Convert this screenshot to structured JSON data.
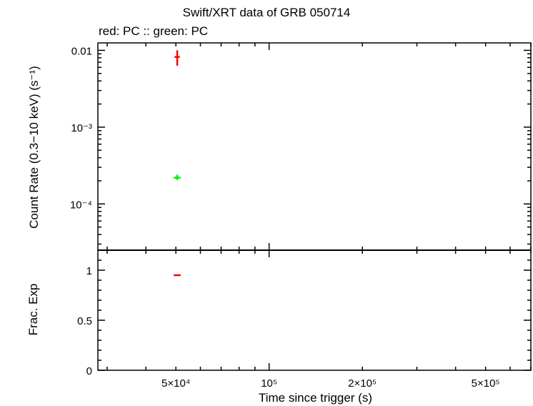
{
  "title": "Swift/XRT data of GRB 050714",
  "subtitle": "red: PC  :: green: PC",
  "colors": {
    "red": "#ff0000",
    "green": "#00ee00",
    "axes": "#000000"
  },
  "chart_data": [
    {
      "type": "scatter",
      "panel": "top",
      "ylabel": "Count Rate (0.3−10 keV) (s⁻¹)",
      "xscale": "log",
      "yscale": "log",
      "xlim": [
        28000,
        700000
      ],
      "ylim": [
        2.5e-05,
        0.0125
      ],
      "yticks": [
        {
          "value": 0.01,
          "label": "0.01"
        },
        {
          "value": 0.001,
          "label": "10⁻³"
        },
        {
          "value": 0.0001,
          "label": "10⁻⁴"
        }
      ],
      "series": [
        {
          "color": "#ff0000",
          "points": [
            {
              "x": 50500,
              "y": 0.0082,
              "xerr": [
                49500,
                51500
              ],
              "yerr": [
                0.0063,
                0.01
              ]
            }
          ]
        },
        {
          "color": "#00ee00",
          "points": [
            {
              "x": 50500,
              "y": 0.00022,
              "xerr": [
                49200,
                51800
              ],
              "yerr": [
                0.000205,
                0.00024
              ]
            }
          ]
        }
      ]
    },
    {
      "type": "scatter",
      "panel": "bottom",
      "xlabel": "Time since trigger (s)",
      "ylabel": "Frac. Exp",
      "xscale": "log",
      "xlim": [
        28000,
        700000
      ],
      "ylim": [
        0,
        1.2
      ],
      "yticks": [
        {
          "value": 0,
          "label": "0"
        },
        {
          "value": 0.5,
          "label": "0.5"
        },
        {
          "value": 1,
          "label": "1"
        }
      ],
      "xticks": [
        {
          "value": 50000,
          "label": "5×10⁴"
        },
        {
          "value": 100000,
          "label": "10⁵"
        },
        {
          "value": 200000,
          "label": "2×10⁵"
        },
        {
          "value": 500000,
          "label": "5×10⁵"
        }
      ],
      "series": [
        {
          "color": "#ff0000",
          "points": [
            {
              "x": 50500,
              "y": 0.95,
              "xerr": [
                49200,
                51800
              ]
            }
          ]
        }
      ]
    }
  ]
}
